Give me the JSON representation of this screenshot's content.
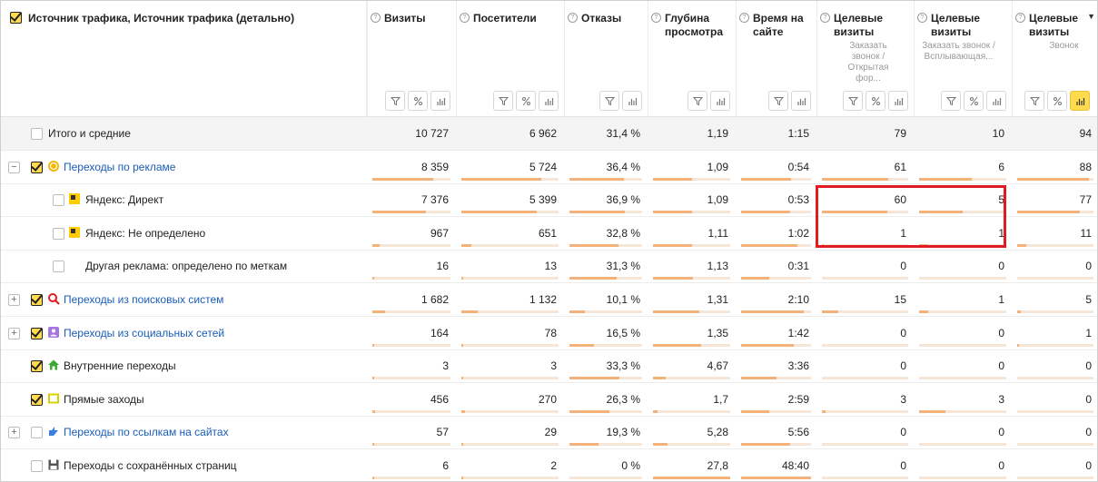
{
  "header": {
    "dimension_label": "Источник трафика, Источник трафика (детально)",
    "columns": [
      {
        "key": "visits",
        "title": "Визиты",
        "sub": ""
      },
      {
        "key": "visitors",
        "title": "Посетители",
        "sub": ""
      },
      {
        "key": "bounces",
        "title": "Отказы",
        "sub": ""
      },
      {
        "key": "depth",
        "title": "Глубина просмотра",
        "sub": ""
      },
      {
        "key": "time",
        "title": "Время на сайте",
        "sub": ""
      },
      {
        "key": "goal1",
        "title": "Целевые визиты",
        "sub": "Заказать звонок / Открытая фор..."
      },
      {
        "key": "goal2",
        "title": "Целевые визиты",
        "sub": "Заказать звонок / Всплывающая..."
      },
      {
        "key": "goal3",
        "title": "Целевые визиты",
        "sub": "Звонок"
      }
    ],
    "sort_arrow": "▼"
  },
  "rows": [
    {
      "name": "Итого и средние",
      "type": "total",
      "values": [
        "10 727",
        "6 962",
        "31,4 %",
        "1,19",
        "1:15",
        "79",
        "10",
        "94"
      ],
      "bars": [
        0,
        0,
        0,
        0,
        0,
        0,
        0,
        0
      ]
    },
    {
      "name": "Переходы по рекламе",
      "type": "group",
      "expander": "−",
      "icon": "ad-coin-icon",
      "link": true,
      "checked": true,
      "values": [
        "8 359",
        "5 724",
        "36,4 %",
        "1,09",
        "0:54",
        "61",
        "6",
        "88"
      ],
      "bars": [
        0.78,
        0.82,
        0.75,
        0.5,
        0.72,
        0.77,
        0.6,
        0.94
      ]
    },
    {
      "name": "Яндекс: Директ",
      "type": "child",
      "icon": "yandex-direct-icon",
      "checked": false,
      "values": [
        "7 376",
        "5 399",
        "36,9 %",
        "1,09",
        "0:53",
        "60",
        "5",
        "77"
      ],
      "bars": [
        0.69,
        0.78,
        0.76,
        0.5,
        0.7,
        0.76,
        0.5,
        0.82
      ]
    },
    {
      "name": "Яндекс: Не определено",
      "type": "child",
      "icon": "yandex-direct-icon",
      "checked": false,
      "values": [
        "967",
        "651",
        "32,8 %",
        "1,11",
        "1:02",
        "1",
        "1",
        "11"
      ],
      "bars": [
        0.09,
        0.1,
        0.68,
        0.51,
        0.8,
        0.02,
        0.1,
        0.12
      ]
    },
    {
      "name": "Другая реклама: определено по меткам",
      "type": "child",
      "icon": "",
      "checked": false,
      "values": [
        "16",
        "13",
        "31,3 %",
        "1,13",
        "0:31",
        "0",
        "0",
        "0"
      ],
      "bars": [
        0.01,
        0.01,
        0.65,
        0.52,
        0.4,
        0,
        0,
        0
      ]
    },
    {
      "name": "Переходы из поисковых систем",
      "type": "group",
      "expander": "+",
      "icon": "search-engine-icon",
      "link": true,
      "checked": true,
      "values": [
        "1 682",
        "1 132",
        "10,1 %",
        "1,31",
        "2:10",
        "15",
        "1",
        "5"
      ],
      "bars": [
        0.16,
        0.17,
        0.21,
        0.6,
        0.9,
        0.19,
        0.1,
        0.05
      ]
    },
    {
      "name": "Переходы из социальных сетей",
      "type": "group",
      "expander": "+",
      "icon": "social-network-icon",
      "link": true,
      "checked": true,
      "values": [
        "164",
        "78",
        "16,5 %",
        "1,35",
        "1:42",
        "0",
        "0",
        "1"
      ],
      "bars": [
        0.02,
        0.01,
        0.34,
        0.62,
        0.75,
        0,
        0,
        0.01
      ]
    },
    {
      "name": "Внутренние переходы",
      "type": "group",
      "expander": "",
      "icon": "internal-home-icon",
      "link": false,
      "checked": true,
      "values": [
        "3",
        "3",
        "33,3 %",
        "4,67",
        "3:36",
        "0",
        "0",
        "0"
      ],
      "bars": [
        0.005,
        0.005,
        0.69,
        0.17,
        0.5,
        0,
        0,
        0
      ]
    },
    {
      "name": "Прямые заходы",
      "type": "group",
      "expander": "",
      "icon": "direct-visit-icon",
      "link": false,
      "checked": true,
      "values": [
        "456",
        "270",
        "26,3 %",
        "1,7",
        "2:59",
        "3",
        "3",
        "0"
      ],
      "bars": [
        0.04,
        0.04,
        0.55,
        0.06,
        0.4,
        0.04,
        0.3,
        0
      ]
    },
    {
      "name": "Переходы по ссылкам на сайтах",
      "type": "group",
      "expander": "+",
      "icon": "link-arrow-icon",
      "link": true,
      "checked": false,
      "values": [
        "57",
        "29",
        "19,3 %",
        "5,28",
        "5:56",
        "0",
        "0",
        "0"
      ],
      "bars": [
        0.005,
        0.005,
        0.4,
        0.19,
        0.7,
        0,
        0,
        0
      ]
    },
    {
      "name": "Переходы с сохранённых страниц",
      "type": "group",
      "expander": "",
      "icon": "saved-page-icon",
      "link": false,
      "checked": false,
      "values": [
        "6",
        "2",
        "0 %",
        "27,8",
        "48:40",
        "0",
        "0",
        "0"
      ],
      "bars": [
        0.001,
        0.001,
        0,
        1,
        1,
        0,
        0,
        0
      ]
    }
  ],
  "colors": {
    "accent": "#ffdb4d",
    "bar": "#f2b27a",
    "link": "#1a5db8",
    "highlight": "#e11b22"
  }
}
